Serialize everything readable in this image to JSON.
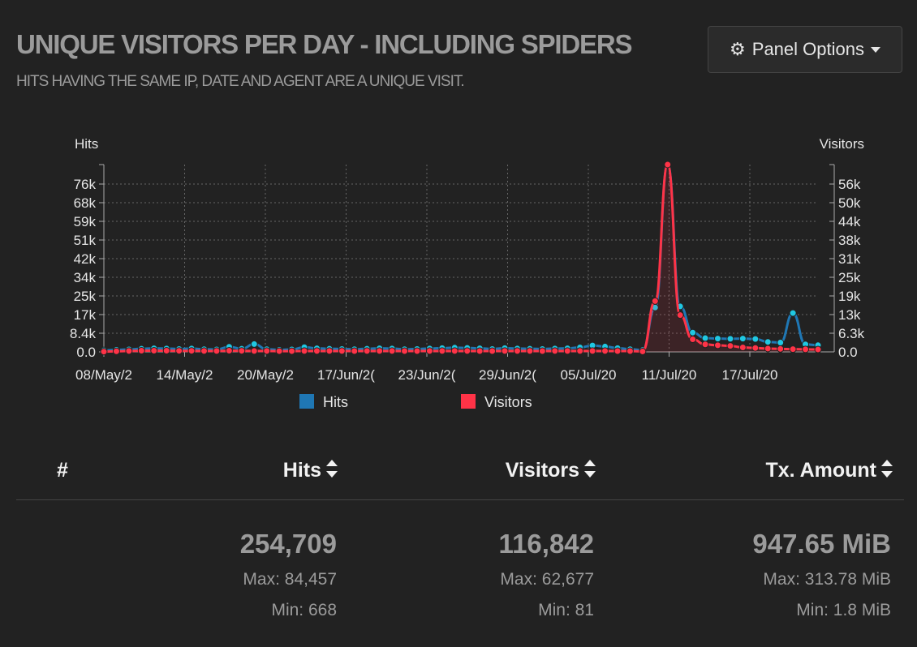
{
  "panel": {
    "title": "UNIQUE VISITORS PER DAY - INCLUDING SPIDERS",
    "subtitle": "HITS HAVING THE SAME IP, DATE AND AGENT ARE A UNIQUE VISIT.",
    "options_label": "Panel Options",
    "options_icon": "gear-icon"
  },
  "chart_data": {
    "type": "line",
    "left_axis_label": "Hits",
    "right_axis_label": "Visitors",
    "left_ticks": [
      "0.0",
      "8.4k",
      "17k",
      "25k",
      "34k",
      "42k",
      "51k",
      "59k",
      "68k",
      "76k"
    ],
    "right_ticks": [
      "0.0",
      "6.3k",
      "13k",
      "19k",
      "25k",
      "31k",
      "38k",
      "44k",
      "50k",
      "56k"
    ],
    "left_ylim": [
      0,
      84457
    ],
    "right_ylim": [
      0,
      62677
    ],
    "x_ticks": [
      "08/May/2",
      "14/May/2",
      "20/May/2",
      "17/Jun/2(",
      "23/Jun/2(",
      "29/Jun/2(",
      "05/Jul/20",
      "11/Jul/20",
      "17/Jul/20"
    ],
    "grid": true,
    "legend_position": "bottom",
    "series": [
      {
        "name": "Hits",
        "color": "#1f77b4",
        "point_color": "#1fc8e3",
        "axis": "left",
        "values": [
          668,
          900,
          1100,
          1400,
          1600,
          1500,
          1300,
          1500,
          1200,
          1100,
          2300,
          1400,
          3500,
          1200,
          900,
          1100,
          2100,
          1600,
          1400,
          1300,
          1200,
          1400,
          1600,
          1500,
          1200,
          1300,
          1500,
          1700,
          1900,
          1800,
          1600,
          1300,
          1700,
          1500,
          1400,
          1300,
          1500,
          1600,
          2000,
          2900,
          2400,
          1700,
          1200,
          800,
          20000,
          84457,
          20500,
          8700,
          6200,
          6000,
          5900,
          6000,
          5800,
          4500,
          4200,
          17500,
          3400,
          3000
        ]
      },
      {
        "name": "Visitors",
        "color": "#ff3347",
        "point_color": "#ff3347",
        "axis": "right",
        "values": [
          81,
          200,
          300,
          400,
          400,
          400,
          350,
          350,
          300,
          300,
          400,
          350,
          300,
          300,
          250,
          250,
          300,
          300,
          300,
          300,
          280,
          300,
          300,
          300,
          280,
          280,
          300,
          300,
          300,
          300,
          280,
          280,
          300,
          300,
          300,
          280,
          300,
          300,
          300,
          300,
          300,
          280,
          280,
          150,
          17000,
          62677,
          12300,
          4200,
          2500,
          2200,
          2000,
          1500,
          1300,
          1100,
          1000,
          900,
          850,
          800
        ]
      }
    ]
  },
  "table": {
    "headers": {
      "index": "#",
      "hits": "Hits",
      "visitors": "Visitors",
      "tx": "Tx. Amount"
    },
    "totals": {
      "hits": "254,709",
      "visitors": "116,842",
      "tx": "947.65 MiB"
    },
    "max": {
      "hits": "Max: 84,457",
      "visitors": "Max: 62,677",
      "tx": "Max: 313.78 MiB"
    },
    "min": {
      "hits": "Min: 668",
      "visitors": "Min: 81",
      "tx": "Min: 1.8 MiB"
    }
  }
}
